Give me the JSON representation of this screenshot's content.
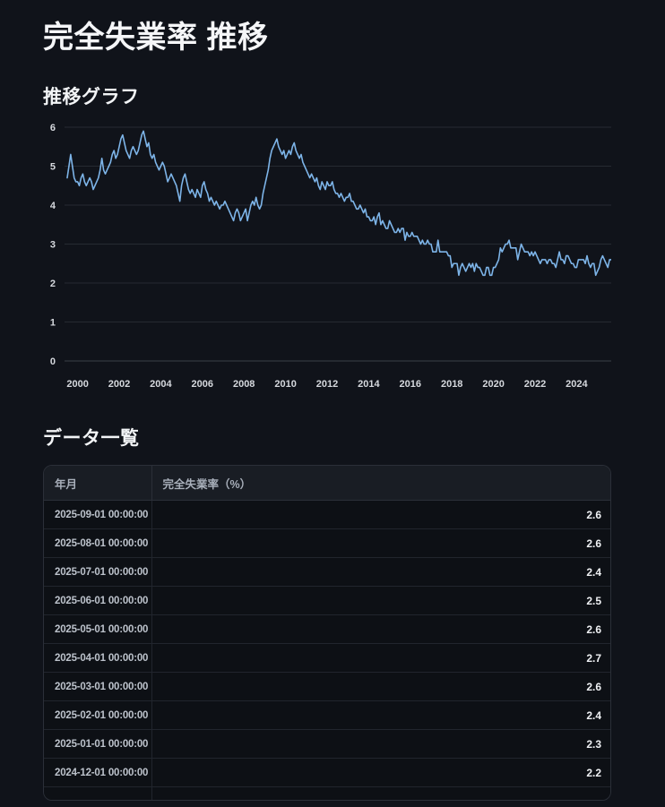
{
  "page": {
    "title": "完全失業率 推移",
    "graph_section_heading": "推移グラフ",
    "table_section_heading": "データ一覧"
  },
  "colors": {
    "background": "#10131a",
    "line": "#7db4e8",
    "gridline": "#262a31",
    "axis_line": "#3a4048",
    "tick_label": "#d6d9de",
    "table_border": "#2b2f38",
    "header_bg": "#191d24",
    "row_bg": "#0d1015"
  },
  "chart_data": {
    "type": "line",
    "title": "推移グラフ",
    "series_name": "完全失業率（%）",
    "xlabel": "",
    "ylabel": "",
    "x_start": "1999-07",
    "x_end": "2025-09",
    "ylim": [
      0,
      6.2
    ],
    "grid": true,
    "legend": "none",
    "y_ticks": [
      0,
      1,
      2,
      3,
      4,
      5,
      6
    ],
    "x_tick_years": [
      2000,
      2002,
      2004,
      2006,
      2008,
      2010,
      2012,
      2014,
      2016,
      2018,
      2020,
      2022,
      2024
    ],
    "monthly_values_by_year": {
      "1999": [
        4.7,
        5.0,
        5.3,
        5.0,
        4.7,
        4.6
      ],
      "2000": [
        4.6,
        4.5,
        4.7,
        4.8,
        4.6,
        4.5,
        4.6,
        4.7,
        4.6,
        4.4,
        4.5,
        4.6
      ],
      "2001": [
        4.7,
        4.9,
        5.2,
        4.9,
        4.8,
        4.9,
        5.0,
        5.1,
        5.3,
        5.4,
        5.2,
        5.3
      ],
      "2002": [
        5.5,
        5.7,
        5.8,
        5.6,
        5.4,
        5.3,
        5.2,
        5.4,
        5.5,
        5.4,
        5.3,
        5.4
      ],
      "2003": [
        5.6,
        5.8,
        5.9,
        5.7,
        5.5,
        5.6,
        5.3,
        5.2,
        5.3,
        5.1,
        5.0,
        4.9
      ],
      "2004": [
        5.0,
        5.1,
        5.0,
        4.8,
        4.6,
        4.7,
        4.8,
        4.7,
        4.6,
        4.5,
        4.3,
        4.1
      ],
      "2005": [
        4.5,
        4.7,
        4.8,
        4.6,
        4.4,
        4.3,
        4.4,
        4.3,
        4.2,
        4.4,
        4.3,
        4.2
      ],
      "2006": [
        4.5,
        4.6,
        4.4,
        4.3,
        4.1,
        4.2,
        4.1,
        4.0,
        4.1,
        4.0,
        3.9,
        4.0
      ],
      "2007": [
        4.0,
        4.1,
        4.0,
        3.9,
        3.8,
        3.7,
        3.6,
        3.8,
        3.9,
        3.8,
        3.6,
        3.7
      ],
      "2008": [
        3.8,
        3.9,
        3.6,
        3.8,
        4.0,
        4.1,
        4.0,
        4.2,
        4.0,
        3.9,
        4.0,
        4.3
      ],
      "2009": [
        4.5,
        4.7,
        4.9,
        5.2,
        5.4,
        5.5,
        5.6,
        5.7,
        5.5,
        5.4,
        5.3,
        5.4
      ],
      "2010": [
        5.2,
        5.3,
        5.4,
        5.3,
        5.5,
        5.6,
        5.4,
        5.3,
        5.2,
        5.3,
        5.1,
        5.0
      ],
      "2011": [
        4.9,
        4.8,
        4.7,
        4.8,
        4.7,
        4.6,
        4.7,
        4.5,
        4.4,
        4.6,
        4.5,
        4.4
      ],
      "2012": [
        4.6,
        4.5,
        4.5,
        4.6,
        4.4,
        4.3,
        4.3,
        4.2,
        4.3,
        4.2,
        4.1,
        4.2
      ],
      "2013": [
        4.2,
        4.3,
        4.1,
        4.1,
        4.0,
        3.9,
        3.9,
        4.0,
        3.9,
        3.8,
        3.9,
        3.7
      ],
      "2014": [
        3.7,
        3.6,
        3.6,
        3.7,
        3.5,
        3.7,
        3.8,
        3.5,
        3.6,
        3.5,
        3.4,
        3.4
      ],
      "2015": [
        3.6,
        3.5,
        3.4,
        3.3,
        3.3,
        3.4,
        3.3,
        3.4,
        3.4,
        3.1,
        3.3,
        3.2
      ],
      "2016": [
        3.2,
        3.3,
        3.2,
        3.2,
        3.2,
        3.1,
        3.0,
        3.1,
        3.0,
        3.0,
        3.1,
        3.0
      ],
      "2017": [
        3.0,
        2.8,
        2.8,
        2.8,
        3.1,
        2.8,
        2.8,
        2.8,
        2.8,
        2.8,
        2.7,
        2.7
      ],
      "2018": [
        2.4,
        2.5,
        2.5,
        2.5,
        2.2,
        2.4,
        2.5,
        2.4,
        2.3,
        2.4,
        2.5,
        2.4
      ],
      "2019": [
        2.5,
        2.3,
        2.5,
        2.4,
        2.4,
        2.3,
        2.2,
        2.2,
        2.4,
        2.4,
        2.2,
        2.2
      ],
      "2020": [
        2.4,
        2.4,
        2.5,
        2.6,
        2.9,
        2.8,
        2.9,
        3.0,
        3.0,
        3.1,
        2.9,
        2.9
      ],
      "2021": [
        2.9,
        2.9,
        2.6,
        2.8,
        3.0,
        2.9,
        2.8,
        2.8,
        2.8,
        2.7,
        2.8,
        2.7
      ],
      "2022": [
        2.8,
        2.7,
        2.6,
        2.5,
        2.6,
        2.6,
        2.6,
        2.5,
        2.6,
        2.6,
        2.5,
        2.5
      ],
      "2023": [
        2.4,
        2.6,
        2.8,
        2.6,
        2.6,
        2.5,
        2.7,
        2.7,
        2.6,
        2.5,
        2.5,
        2.4
      ],
      "2024": [
        2.4,
        2.6,
        2.6,
        2.6,
        2.6,
        2.5,
        2.7,
        2.5,
        2.4,
        2.5,
        2.5,
        2.2
      ],
      "2025": [
        2.3,
        2.4,
        2.6,
        2.7,
        2.6,
        2.5,
        2.4,
        2.6,
        2.6
      ]
    }
  },
  "table": {
    "columns": [
      "年月",
      "完全失業率（%）"
    ],
    "rows": [
      {
        "date": "2025-09-01 00:00:00",
        "value": "2.6"
      },
      {
        "date": "2025-08-01 00:00:00",
        "value": "2.6"
      },
      {
        "date": "2025-07-01 00:00:00",
        "value": "2.4"
      },
      {
        "date": "2025-06-01 00:00:00",
        "value": "2.5"
      },
      {
        "date": "2025-05-01 00:00:00",
        "value": "2.6"
      },
      {
        "date": "2025-04-01 00:00:00",
        "value": "2.7"
      },
      {
        "date": "2025-03-01 00:00:00",
        "value": "2.6"
      },
      {
        "date": "2025-02-01 00:00:00",
        "value": "2.4"
      },
      {
        "date": "2025-01-01 00:00:00",
        "value": "2.3"
      },
      {
        "date": "2024-12-01 00:00:00",
        "value": "2.2"
      }
    ]
  }
}
